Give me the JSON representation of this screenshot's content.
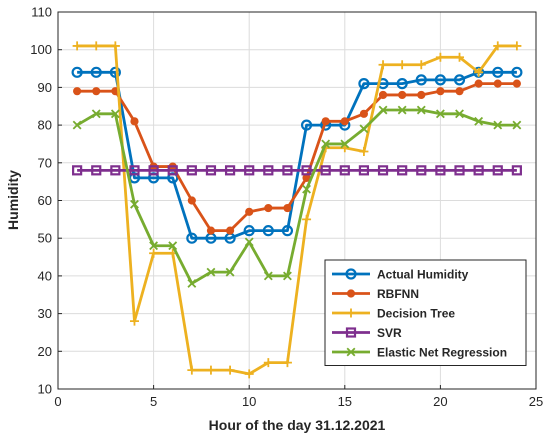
{
  "chart_data": {
    "type": "line",
    "title": "",
    "xlabel": "Hour of the day 31.12.2021",
    "ylabel": "Humidity",
    "xlim": [
      0,
      25
    ],
    "ylim": [
      10,
      110
    ],
    "xticks": [
      0,
      5,
      10,
      15,
      20,
      25
    ],
    "yticks": [
      10,
      20,
      30,
      40,
      50,
      60,
      70,
      80,
      90,
      100,
      110
    ],
    "grid": true,
    "legend_position": "lower-right",
    "x": [
      1,
      2,
      3,
      4,
      5,
      6,
      7,
      8,
      9,
      10,
      11,
      12,
      13,
      14,
      15,
      16,
      17,
      18,
      19,
      20,
      21,
      22,
      23,
      24
    ],
    "series": [
      {
        "name": "Actual Humidity",
        "color": "#0072BD",
        "marker": "circle",
        "values": [
          94,
          94,
          94,
          66,
          66,
          66,
          50,
          50,
          50,
          52,
          52,
          52,
          80,
          80,
          80,
          91,
          91,
          91,
          92,
          92,
          92,
          94,
          94,
          94
        ]
      },
      {
        "name": "RBFNN",
        "color": "#D95319",
        "marker": "dot",
        "values": [
          89,
          89,
          89,
          81,
          69,
          69,
          60,
          52,
          52,
          57,
          58,
          58,
          66,
          81,
          81,
          83,
          88,
          88,
          88,
          89,
          89,
          91,
          91,
          91
        ]
      },
      {
        "name": "Decision Tree",
        "color": "#EDB120",
        "marker": "plus",
        "values": [
          101,
          101,
          101,
          28,
          46,
          46,
          15,
          15,
          15,
          14,
          17,
          17,
          55,
          74,
          74,
          73,
          96,
          96,
          96,
          98,
          98,
          94,
          101,
          101
        ]
      },
      {
        "name": "SVR",
        "color": "#7E2F8E",
        "marker": "square",
        "values": [
          68,
          68,
          68,
          68,
          68,
          68,
          68,
          68,
          68,
          68,
          68,
          68,
          68,
          68,
          68,
          68,
          68,
          68,
          68,
          68,
          68,
          68,
          68,
          68
        ]
      },
      {
        "name": "Elastic Net Regression",
        "color": "#77AC30",
        "marker": "x",
        "values": [
          80,
          83,
          83,
          59,
          48,
          48,
          38,
          41,
          41,
          49,
          40,
          40,
          63,
          75,
          75,
          79,
          84,
          84,
          84,
          83,
          83,
          81,
          80,
          80
        ]
      }
    ]
  }
}
